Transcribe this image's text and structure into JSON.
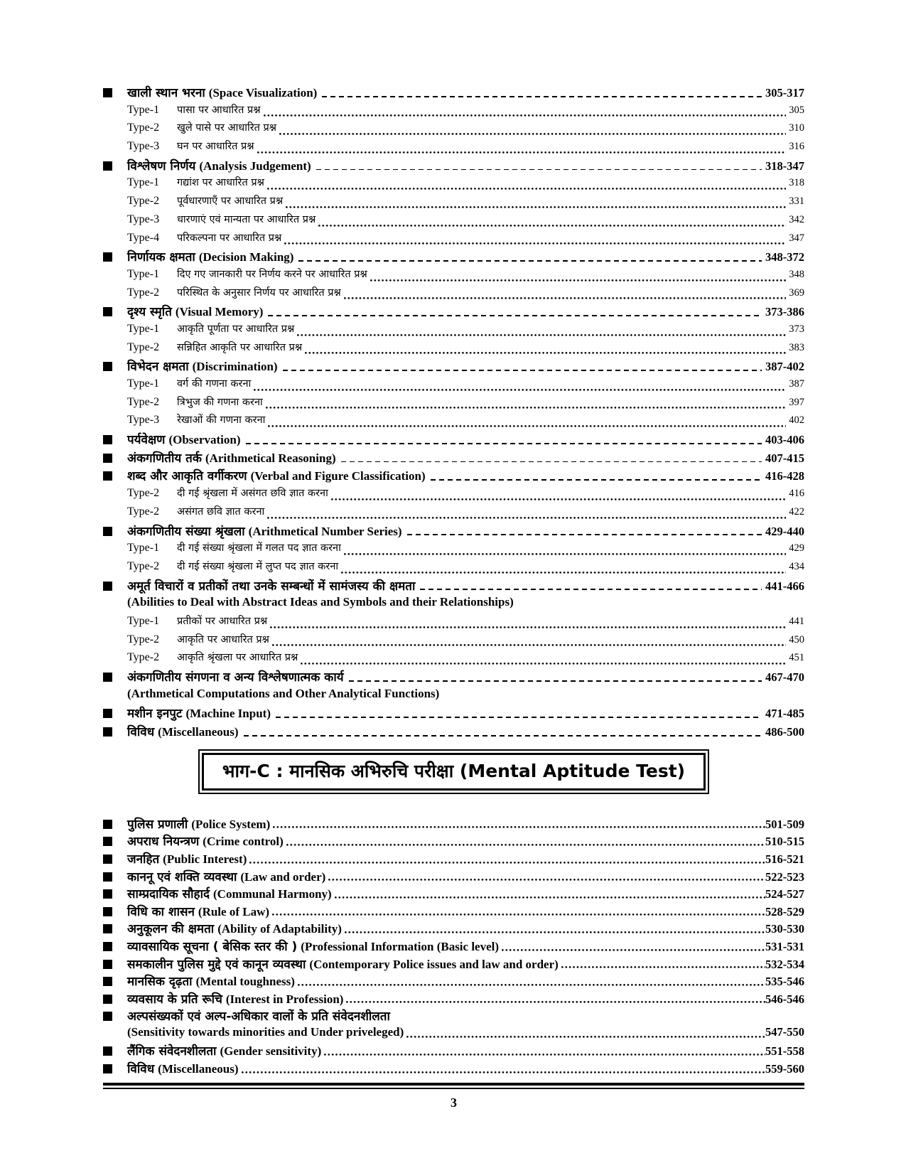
{
  "part_b": {
    "items": [
      {
        "hindi": "खाली स्थान भरना",
        "english": "(Space Visualization)",
        "pages": "305-317",
        "subs": [
          {
            "label": "Type-1",
            "text": "पासा पर आधारित प्रश्न",
            "page": "305"
          },
          {
            "label": "Type-2",
            "text": "खुले पासे पर आधारित प्रश्न",
            "page": "310"
          },
          {
            "label": "Type-3",
            "text": "घन पर आधारित प्रश्न",
            "page": "316"
          }
        ]
      },
      {
        "hindi": "विश्लेषण निर्णय",
        "english": "(Analysis Judgement)",
        "pages": "318-347",
        "subs": [
          {
            "label": "Type-1",
            "text": "गद्यांश पर आधारित प्रश्न",
            "page": "318"
          },
          {
            "label": "Type-2",
            "text": "पूर्वधारणाएँ पर आधारित प्रश्न",
            "page": "331"
          },
          {
            "label": "Type-3",
            "text": "धारणाएं एवं मान्यता पर आधारित प्रश्न",
            "page": "342"
          },
          {
            "label": "Type-4",
            "text": "परिकल्पना पर आधारित प्रश्न",
            "page": "347"
          }
        ]
      },
      {
        "hindi": "निर्णायक क्षमता",
        "english": "(Decision Making)",
        "pages": "348-372",
        "subs": [
          {
            "label": "Type-1",
            "text": "दिए गए जानकारी पर निर्णय करने पर आधारित प्रश्न",
            "page": "348"
          },
          {
            "label": "Type-2",
            "text": "परिस्थित के अनुसार निर्णय पर आधारित प्रश्न",
            "page": "369"
          }
        ]
      },
      {
        "hindi": "दृश्य स्मृति",
        "english": "(Visual Memory)",
        "pages": "373-386",
        "subs": [
          {
            "label": "Type-1",
            "text": "आकृति पूर्णता पर आधारित प्रश्न",
            "page": "373"
          },
          {
            "label": "Type-2",
            "text": "सन्निहित आकृति पर आधारित प्रश्न",
            "page": "383"
          }
        ]
      },
      {
        "hindi": "विभेदन क्षमता",
        "english": "(Discrimination)",
        "pages": "387-402",
        "subs": [
          {
            "label": "Type-1",
            "text": "वर्ग की गणना करना",
            "page": "387"
          },
          {
            "label": "Type-2",
            "text": "त्रिभुज की गणना करना",
            "page": "397"
          },
          {
            "label": "Type-3",
            "text": "रेखाओं की गणना करना",
            "page": "402"
          }
        ]
      },
      {
        "hindi": "पर्यवेक्षण",
        "english": "(Observation)",
        "pages": "403-406",
        "subs": []
      },
      {
        "hindi": "अंकगणितीय तर्क",
        "english": "(Arithmetical Reasoning)",
        "pages": "407-415",
        "subs": []
      },
      {
        "hindi": "शब्द और आकृति वर्गीकरण",
        "english": "(Verbal and Figure Classification)",
        "pages": "416-428",
        "subs": [
          {
            "label": "Type-2",
            "text": "दी गई श्रृंखला में असंगत छवि ज्ञात करना",
            "page": "416"
          },
          {
            "label": "Type-2",
            "text": "असंगत छवि ज्ञात करना",
            "page": "422"
          }
        ]
      },
      {
        "hindi": "अंकगणितीय संख्या श्रृंखला",
        "english": "(Arithmetical Number Series)",
        "pages": "429-440",
        "subs": [
          {
            "label": "Type-1",
            "text": "दी गई संख्या श्रृंखला में गलत पद ज्ञात करना",
            "page": "429"
          },
          {
            "label": "Type-2",
            "text": "दी गई संख्या श्रृंखला में लुप्त पद ज्ञात करना",
            "page": "434"
          }
        ]
      },
      {
        "hindi": "अमूर्त विचारों व प्रतीकों तथा उनके सम्बन्धों में सामंजस्य की क्षमता",
        "english": "",
        "english_below": "(Abilities to Deal with Abstract Ideas and Symbols and their Relationships)",
        "pages": "441-466",
        "pages_line": 1,
        "subs": [
          {
            "label": "Type-1",
            "text": "प्रतीकों पर आधारित प्रश्न",
            "page": "441"
          },
          {
            "label": "Type-2",
            "text": "आकृति पर आधारित प्रश्न",
            "page": "450"
          },
          {
            "label": "Type-2",
            "text": "आकृति श्रृंखला पर आधारित प्रश्न",
            "page": "451"
          }
        ]
      },
      {
        "hindi": "अंकगणितीय संगणना व अन्य विश्लेषणात्मक कार्य",
        "english": "",
        "english_below": "(Arthmetical Computations and Other Analytical Functions)",
        "pages": "467-470",
        "pages_line": 1,
        "subs": []
      },
      {
        "hindi": "मशीन इनपुट",
        "english": "(Machine Input)",
        "pages": "471-485",
        "subs": []
      },
      {
        "hindi": "विविध",
        "english": "(Miscellaneous)",
        "pages": "486-500",
        "subs": []
      }
    ]
  },
  "part_c": {
    "heading": "भाग-C : मानसिक अभिरुचि परीक्षा (Mental Aptitude Test)",
    "items": [
      {
        "hindi": "पुलिस प्रणाली",
        "english": "(Police System)",
        "pages": "501-509"
      },
      {
        "hindi": "अपराध नियन्त्रण",
        "english": "(Crime control)",
        "pages": "510-515"
      },
      {
        "hindi": "जनहित",
        "english": "(Public Interest)",
        "pages": "516-521"
      },
      {
        "hindi": "काननू एवं शक्ति व्यवस्था",
        "english": "(Law and order)",
        "pages": "522-523"
      },
      {
        "hindi": "साम्प्रदायिक सौहार्द",
        "english": "(Communal Harmony)",
        "pages": "524-527"
      },
      {
        "hindi": "विधि का शासन",
        "english": "(Rule of Law)",
        "pages": "528-529"
      },
      {
        "hindi": "अनुकूलन की क्षमता",
        "english": "(Ability of Adaptability)",
        "pages": "530-530"
      },
      {
        "hindi": "व्यावसायिक सूचना ( बेसिक स्तर की )",
        "english": "(Professional Information (Basic level)",
        "pages": "531-531"
      },
      {
        "hindi": "समकालीन पुलिस मुद्दे एवं कानून व्यवस्था",
        "english": "(Contemporary Police issues and law and order)",
        "pages": "532-534"
      },
      {
        "hindi": "मानसिक दृढ़ता",
        "english": "(Mental toughness)",
        "pages": "535-546"
      },
      {
        "hindi": "व्यवसाय के प्रति रूचि",
        "english": "(Interest in Profession)",
        "pages": "546-546"
      },
      {
        "hindi": "अल्पसंख्यकों एवं अल्प-अधिकार वालों के प्रति संवेदनशीलता",
        "english": "",
        "english_below": "(Sensitivity towards minorities and Under priveleged)",
        "pages": "547-550",
        "pages_line": 2
      },
      {
        "hindi": "लैंगिक संवेदनशीलता",
        "english": "(Gender sensitivity)",
        "pages": "551-558"
      },
      {
        "hindi": "विविध",
        "english": "(Miscellaneous)",
        "pages": "559-560"
      }
    ]
  },
  "page_footer": {
    "page_number": "3"
  }
}
